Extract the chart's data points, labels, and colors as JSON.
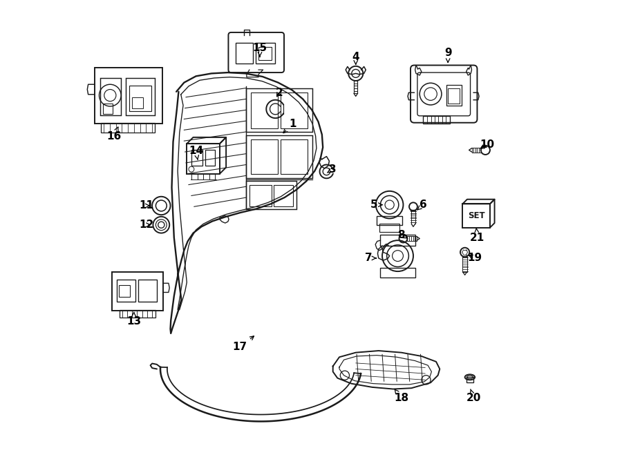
{
  "background_color": "#ffffff",
  "line_color": "#1a1a1a",
  "fig_w": 9.0,
  "fig_h": 6.62,
  "dpi": 100,
  "labels": {
    "1": [
      0.455,
      0.72,
      0.435,
      0.695
    ],
    "2": [
      0.43,
      0.79,
      0.423,
      0.77
    ],
    "3": [
      0.54,
      0.64,
      0.533,
      0.622
    ],
    "4": [
      0.598,
      0.88,
      0.598,
      0.846
    ],
    "5": [
      0.64,
      0.552,
      0.66,
      0.552
    ],
    "6": [
      0.74,
      0.552,
      0.73,
      0.54
    ],
    "7": [
      0.628,
      0.435,
      0.648,
      0.435
    ],
    "8": [
      0.702,
      0.485,
      0.716,
      0.476
    ],
    "9": [
      0.8,
      0.885,
      0.8,
      0.858
    ],
    "10": [
      0.882,
      0.695,
      0.866,
      0.68
    ],
    "11": [
      0.148,
      0.548,
      0.163,
      0.548
    ],
    "12": [
      0.148,
      0.508,
      0.163,
      0.508
    ],
    "13": [
      0.108,
      0.295,
      0.108,
      0.318
    ],
    "14": [
      0.252,
      0.67,
      0.252,
      0.648
    ],
    "15": [
      0.39,
      0.892,
      0.39,
      0.868
    ],
    "16": [
      0.068,
      0.705,
      0.068,
      0.728
    ],
    "17": [
      0.34,
      0.24,
      0.34,
      0.268
    ],
    "18": [
      0.698,
      0.128,
      0.698,
      0.155
    ],
    "19": [
      0.854,
      0.44,
      0.836,
      0.45
    ],
    "20": [
      0.854,
      0.128,
      0.848,
      0.155
    ],
    "21": [
      0.862,
      0.48,
      0.862,
      0.502
    ]
  }
}
